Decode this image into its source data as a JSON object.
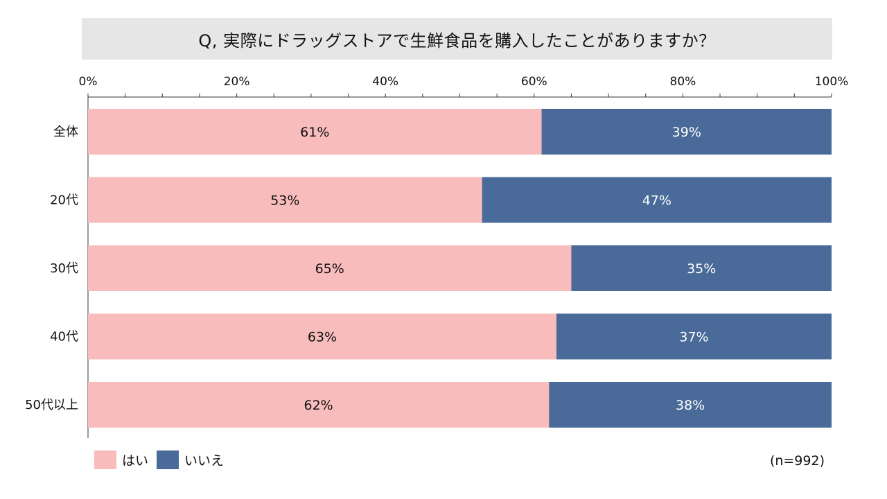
{
  "title": "Q, 実際にドラッグストアで生鮮食品を購入したことがありますか？",
  "sample_note": "(n=992)",
  "colors": {
    "yes": "#f8bcbc",
    "no": "#4a6a99",
    "axis": "#333333"
  },
  "chart_data": {
    "type": "bar",
    "orientation": "horizontal",
    "stacked": true,
    "percent": true,
    "categories": [
      "全体",
      "20代",
      "30代",
      "40代",
      "50代以上"
    ],
    "series": [
      {
        "name": "はい",
        "values": [
          61,
          53,
          65,
          63,
          62
        ],
        "labels": [
          "61%",
          "53%",
          "65%",
          "63%",
          "62%"
        ]
      },
      {
        "name": "いいえ",
        "values": [
          39,
          47,
          35,
          37,
          38
        ],
        "labels": [
          "39%",
          "47%",
          "35%",
          "37%",
          "38%"
        ]
      }
    ],
    "xlim": [
      0,
      100
    ],
    "xticks": [
      "0%",
      "20%",
      "40%",
      "60%",
      "80%",
      "100%"
    ],
    "legend": "bottom-left"
  }
}
